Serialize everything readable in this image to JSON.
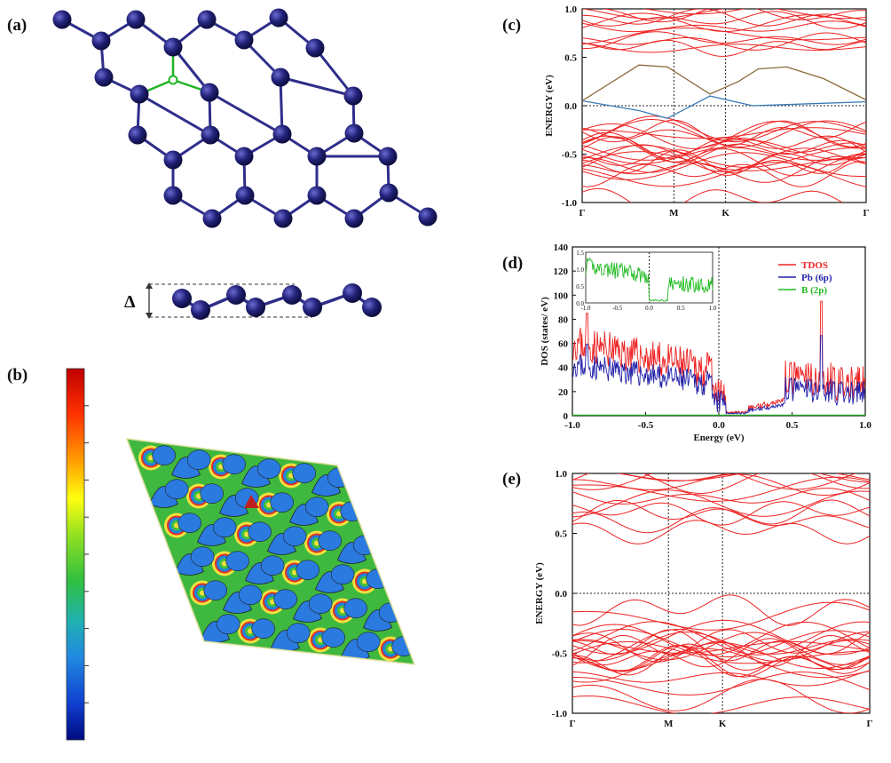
{
  "panels": {
    "a": "(a)",
    "b": "(b)",
    "c": "(c)",
    "d": "(d)",
    "e": "(e)"
  },
  "structure": {
    "delta_symbol": "Δ",
    "atom_color": "#1e1e6e",
    "bond_color": "#2e2e8a",
    "impurity_color": "#22b422"
  },
  "colorbar": {
    "colors": [
      "#c00000",
      "#ff4000",
      "#ffb000",
      "#ffff00",
      "#a0e000",
      "#40c040",
      "#20a8c0",
      "#2080e0",
      "#1030c0",
      "#000a80"
    ]
  },
  "chart_data": [
    {
      "panel": "c",
      "type": "line",
      "ylabel": "ENERGY (eV)",
      "ylim": [
        -1.0,
        1.0
      ],
      "yticks": [
        "1.0",
        "0.5",
        "0.0",
        "-0.5",
        "-1.0"
      ],
      "kpoints": [
        "Γ",
        "M",
        "K",
        "Γ"
      ],
      "band_color": "#ee2222",
      "special_bands": [
        {
          "color": "#8a6a3a",
          "points": [
            [
              0,
              0.05
            ],
            [
              0.2,
              0.42
            ],
            [
              0.3,
              0.4
            ],
            [
              0.45,
              0.12
            ],
            [
              0.55,
              0.25
            ],
            [
              0.62,
              0.38
            ],
            [
              0.72,
              0.4
            ],
            [
              0.85,
              0.28
            ],
            [
              1.0,
              0.06
            ]
          ]
        },
        {
          "color": "#3a7ab8",
          "points": [
            [
              0,
              0.05
            ],
            [
              0.2,
              -0.05
            ],
            [
              0.3,
              -0.13
            ],
            [
              0.45,
              0.1
            ],
            [
              0.6,
              0.0
            ],
            [
              0.8,
              0.02
            ],
            [
              1.0,
              0.04
            ]
          ]
        }
      ],
      "grid": "dotted-vertical-at-high-symmetry"
    },
    {
      "panel": "d",
      "type": "line",
      "xlabel": "Energy (eV)",
      "ylabel": "DOS (states/ eV)",
      "xlim": [
        -1.0,
        1.0
      ],
      "ylim": [
        0,
        140
      ],
      "xticks": [
        "-1.0",
        "-0.5",
        "0.0",
        "0.5",
        "1.0"
      ],
      "yticks": [
        "0",
        "20",
        "40",
        "60",
        "80",
        "100",
        "120",
        "140"
      ],
      "legend": "top-right",
      "series": [
        {
          "name": "TDOS",
          "color": "#ee2222"
        },
        {
          "name": "Pb (6p)",
          "color": "#2222aa"
        },
        {
          "name": "B (2p)",
          "color": "#22bb22"
        }
      ],
      "inset": {
        "xticks": [
          "-1.0",
          "-0.5",
          "0.0",
          "0.5",
          "1.0"
        ],
        "yticks": [
          "0.0",
          "0.5",
          "1.0",
          "1.5"
        ]
      }
    },
    {
      "panel": "e",
      "type": "line",
      "ylabel": "ENERGY (eV)",
      "ylim": [
        -1.0,
        1.0
      ],
      "yticks": [
        "1.0",
        "0.5",
        "0.0",
        "-0.5",
        "-1.0"
      ],
      "kpoints": [
        "Γ",
        "M",
        "K",
        "Γ"
      ],
      "band_color": "#ee2222"
    }
  ]
}
